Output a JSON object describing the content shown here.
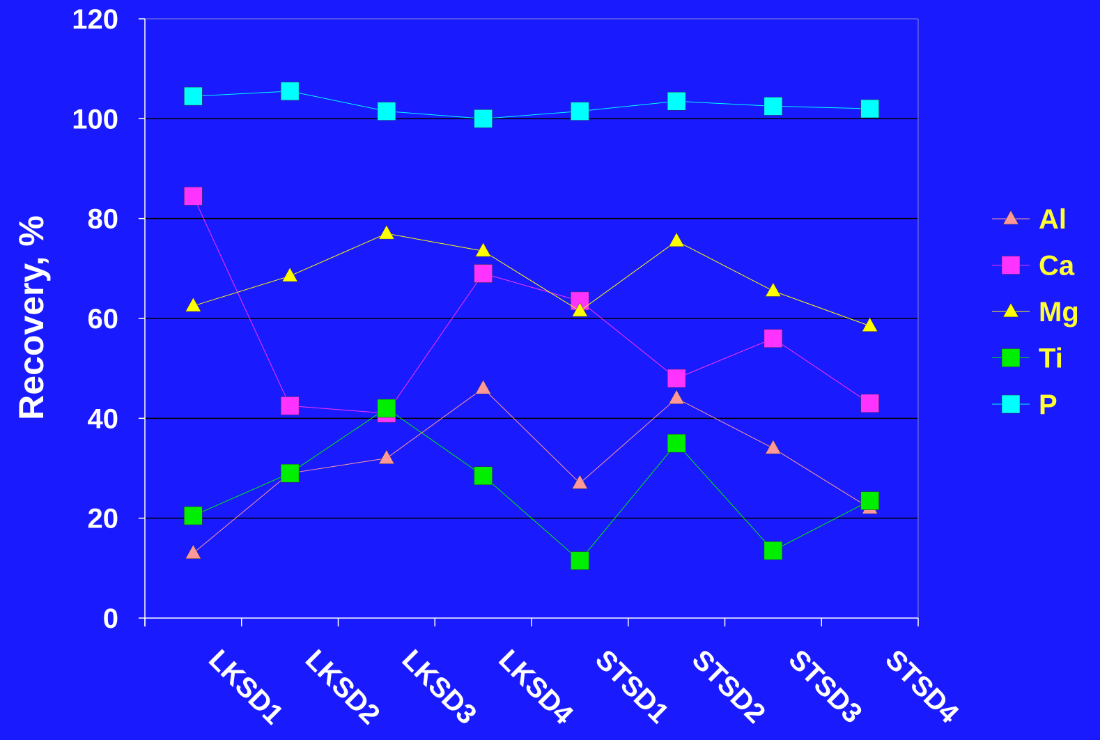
{
  "chart_data": {
    "type": "line",
    "title": "",
    "xlabel": "",
    "ylabel": "Recovery, %",
    "ylim": [
      0,
      120
    ],
    "yticks": [
      0,
      20,
      40,
      60,
      80,
      100,
      120
    ],
    "grid": true,
    "legend_position": "right",
    "categories": [
      "LKSD1",
      "LKSD2",
      "LKSD3",
      "LKSD4",
      "STSD1",
      "STSD2",
      "STSD3",
      "STSD4"
    ],
    "series": [
      {
        "name": "Al",
        "marker": "triangle",
        "color": "#ff9999",
        "values": [
          13,
          29,
          32,
          46,
          27,
          44,
          34,
          22
        ]
      },
      {
        "name": "Ca",
        "marker": "square",
        "color": "#ff33ff",
        "values": [
          84.5,
          42.5,
          41,
          69,
          63.5,
          48,
          56,
          43
        ]
      },
      {
        "name": "Mg",
        "marker": "triangle",
        "color": "#ffff00",
        "values": [
          62.5,
          68.5,
          77,
          73.5,
          61.5,
          75.5,
          65.5,
          58.5
        ]
      },
      {
        "name": "Ti",
        "marker": "square",
        "color": "#00ee00",
        "values": [
          20.5,
          29,
          42,
          28.5,
          11.5,
          35,
          13.5,
          23.5
        ]
      },
      {
        "name": "P",
        "marker": "square",
        "color": "#00ffff",
        "values": [
          104.5,
          105.5,
          101.5,
          100,
          101.5,
          103.5,
          102.5,
          102
        ]
      }
    ]
  }
}
